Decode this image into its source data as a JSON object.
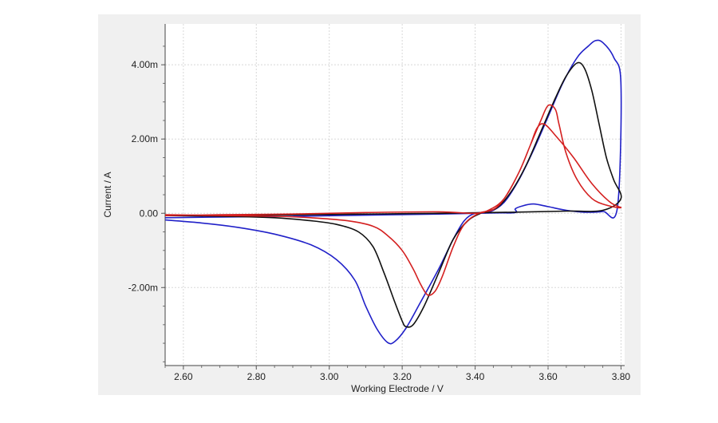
{
  "chart_data": {
    "type": "line",
    "title": "",
    "xlabel": "Working Electrode / V",
    "ylabel": "Current / A",
    "xlim": [
      2.55,
      3.81
    ],
    "ylim": [
      -0.0041,
      0.0051
    ],
    "grid": true,
    "legend": "none",
    "x_ticks": [
      {
        "value": 2.6,
        "label": "2.60"
      },
      {
        "value": 2.8,
        "label": "2.80"
      },
      {
        "value": 3.0,
        "label": "3.00"
      },
      {
        "value": 3.2,
        "label": "3.20"
      },
      {
        "value": 3.4,
        "label": "3.40"
      },
      {
        "value": 3.6,
        "label": "3.60"
      },
      {
        "value": 3.8,
        "label": "3.80"
      }
    ],
    "y_ticks": [
      {
        "value": 0.004,
        "label": "4.00m"
      },
      {
        "value": 0.002,
        "label": "2.00m"
      },
      {
        "value": 0.0,
        "label": "0.00"
      },
      {
        "value": -0.002,
        "label": "-2.00m"
      }
    ],
    "series": [
      {
        "color": "#2020c8",
        "points": [
          [
            2.55,
            -0.00018
          ],
          [
            2.65,
            -0.00026
          ],
          [
            2.75,
            -0.00038
          ],
          [
            2.85,
            -0.00056
          ],
          [
            2.95,
            -0.00085
          ],
          [
            3.02,
            -0.00125
          ],
          [
            3.07,
            -0.0018
          ],
          [
            3.1,
            -0.0025
          ],
          [
            3.13,
            -0.0031
          ],
          [
            3.16,
            -0.00348
          ],
          [
            3.18,
            -0.00345
          ],
          [
            3.21,
            -0.0031
          ],
          [
            3.25,
            -0.0024
          ],
          [
            3.3,
            -0.0015
          ],
          [
            3.34,
            -0.0007
          ],
          [
            3.37,
            -0.0002
          ],
          [
            3.4,
            0.0
          ],
          [
            3.44,
            4e-05
          ],
          [
            3.48,
            0.0003
          ],
          [
            3.52,
            0.0009
          ],
          [
            3.56,
            0.0017
          ],
          [
            3.6,
            0.0026
          ],
          [
            3.64,
            0.0035
          ],
          [
            3.68,
            0.0042
          ],
          [
            3.71,
            0.0045
          ],
          [
            3.73,
            0.00465
          ],
          [
            3.75,
            0.0046
          ],
          [
            3.78,
            0.0042
          ],
          [
            3.8,
            0.00345
          ],
          [
            3.79,
            0.00015
          ],
          [
            3.75,
            5e-05
          ],
          [
            3.7,
            3e-05
          ],
          [
            3.65,
            8e-05
          ],
          [
            3.6,
            0.00018
          ],
          [
            3.56,
            0.00025
          ],
          [
            3.53,
            0.0002
          ],
          [
            3.51,
            0.00012
          ],
          [
            3.51,
            2e-05
          ],
          [
            3.45,
            1e-05
          ],
          [
            3.3,
            -2e-05
          ],
          [
            3.1,
            -5e-05
          ],
          [
            2.9,
            -8e-05
          ],
          [
            2.7,
            -0.0001
          ],
          [
            2.55,
            -0.00012
          ]
        ]
      },
      {
        "color": "#111111",
        "points": [
          [
            2.55,
            -6e-05
          ],
          [
            2.7,
            -8e-05
          ],
          [
            2.85,
            -0.00012
          ],
          [
            2.95,
            -0.0002
          ],
          [
            3.02,
            -0.0003
          ],
          [
            3.08,
            -0.0005
          ],
          [
            3.12,
            -0.0009
          ],
          [
            3.15,
            -0.0016
          ],
          [
            3.18,
            -0.0024
          ],
          [
            3.2,
            -0.0029
          ],
          [
            3.21,
            -0.00305
          ],
          [
            3.23,
            -0.003
          ],
          [
            3.26,
            -0.0025
          ],
          [
            3.3,
            -0.0016
          ],
          [
            3.34,
            -0.0007
          ],
          [
            3.38,
            -0.0002
          ],
          [
            3.42,
            2e-05
          ],
          [
            3.46,
            0.00015
          ],
          [
            3.5,
            0.0006
          ],
          [
            3.54,
            0.0013
          ],
          [
            3.58,
            0.0022
          ],
          [
            3.62,
            0.0031
          ],
          [
            3.65,
            0.0037
          ],
          [
            3.68,
            0.00405
          ],
          [
            3.7,
            0.0039
          ],
          [
            3.72,
            0.0033
          ],
          [
            3.74,
            0.0024
          ],
          [
            3.76,
            0.0015
          ],
          [
            3.78,
            0.0009
          ],
          [
            3.8,
            0.0004
          ],
          [
            3.75,
            8e-05
          ],
          [
            3.65,
            6e-05
          ],
          [
            3.5,
            3e-05
          ],
          [
            3.3,
            0.0
          ],
          [
            3.0,
            -3e-05
          ],
          [
            2.8,
            -5e-05
          ],
          [
            2.55,
            -6e-05
          ]
        ]
      },
      {
        "color": "#d42020",
        "points": [
          [
            2.55,
            -4e-05
          ],
          [
            2.7,
            -6e-05
          ],
          [
            2.85,
            -8e-05
          ],
          [
            2.95,
            -0.00012
          ],
          [
            3.05,
            -0.0002
          ],
          [
            3.12,
            -0.00035
          ],
          [
            3.16,
            -0.0006
          ],
          [
            3.2,
            -0.001
          ],
          [
            3.23,
            -0.0015
          ],
          [
            3.25,
            -0.0019
          ],
          [
            3.27,
            -0.0022
          ],
          [
            3.29,
            -0.0021
          ],
          [
            3.31,
            -0.0017
          ],
          [
            3.34,
            -0.0009
          ],
          [
            3.37,
            -0.0003
          ],
          [
            3.41,
            0.0
          ],
          [
            3.45,
            0.0001
          ],
          [
            3.48,
            0.0004
          ],
          [
            3.52,
            0.0011
          ],
          [
            3.55,
            0.0018
          ],
          [
            3.58,
            0.0025
          ],
          [
            3.6,
            0.0029
          ],
          [
            3.62,
            0.0028
          ],
          [
            3.63,
            0.0024
          ],
          [
            3.65,
            0.0016
          ],
          [
            3.68,
            0.0009
          ],
          [
            3.72,
            0.0004
          ],
          [
            3.76,
            0.00022
          ],
          [
            3.8,
            0.00015
          ],
          [
            3.77,
            0.0003
          ],
          [
            3.72,
            0.0008
          ],
          [
            3.67,
            0.0015
          ],
          [
            3.62,
            0.0021
          ],
          [
            3.59,
            0.0024
          ],
          [
            3.57,
            0.0023
          ],
          [
            3.55,
            0.0018
          ],
          [
            3.52,
            0.0011
          ],
          [
            3.48,
            0.0004
          ],
          [
            3.44,
            0.0001
          ],
          [
            3.4,
            0.0
          ],
          [
            3.3,
            4e-05
          ],
          [
            3.1,
            2e-05
          ],
          [
            2.9,
            -2e-05
          ],
          [
            2.7,
            -4e-05
          ],
          [
            2.55,
            -6e-05
          ]
        ]
      }
    ]
  }
}
